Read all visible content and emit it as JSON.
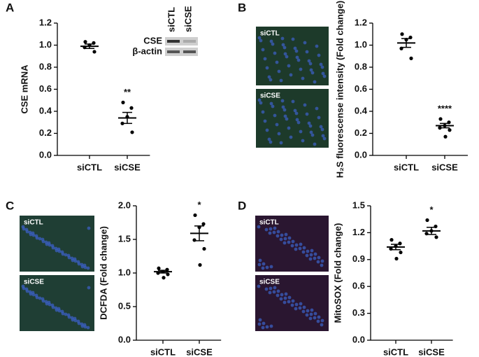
{
  "chart_data": [
    {
      "type": "strip",
      "panel_label": "A",
      "ylabel": "CSE mRNA",
      "categories": [
        "siCTL",
        "siCSE"
      ],
      "values": [
        [
          1.03,
          1.02,
          1.0,
          0.98,
          0.94
        ],
        [
          0.48,
          0.43,
          0.35,
          0.29,
          0.21
        ]
      ],
      "means": [
        0.99,
        0.34
      ],
      "sems": [
        0.02,
        0.05
      ],
      "annotation": "**",
      "color": "#000000",
      "ylim": [
        0,
        1.2
      ],
      "yticks": [
        {
          "value": 0,
          "label": "0.0"
        },
        0.2,
        0.4,
        0.6,
        0.8,
        {
          "value": 1,
          "label": "1.0"
        },
        1.2
      ],
      "blot": {
        "lanes": [
          "siCTL",
          "siCSE"
        ],
        "rows": [
          "CSE",
          "β-actin"
        ]
      }
    },
    {
      "type": "strip",
      "panel_label": "B",
      "ylabel": "H₂S fluorescense intensity (Fold change)",
      "categories": [
        "siCTL",
        "siCSE"
      ],
      "values": [
        [
          1.1,
          1.07,
          1.05,
          0.97,
          0.88
        ],
        [
          0.33,
          0.3,
          0.27,
          0.25,
          0.23,
          0.17
        ]
      ],
      "means": [
        1.02,
        0.27
      ],
      "sems": [
        0.04,
        0.02
      ],
      "annotation": "****",
      "color": "#000000",
      "ylim": [
        0,
        1.2
      ],
      "yticks": [
        {
          "value": 0,
          "label": "0.0"
        },
        0.2,
        0.4,
        0.6,
        0.8,
        {
          "value": 1,
          "label": "1.0"
        },
        1.2
      ],
      "images": [
        "siCTL",
        "siCSE"
      ],
      "image_color": "#1d3a2a"
    },
    {
      "type": "strip",
      "panel_label": "C",
      "ylabel": "DCFDA (Fold change)",
      "categories": [
        "siCTL",
        "siCSE"
      ],
      "values": [
        [
          1.07,
          1.05,
          1.02,
          1.0,
          0.98,
          0.93
        ],
        [
          1.86,
          1.73,
          1.68,
          1.49,
          1.36,
          1.12
        ]
      ],
      "means": [
        1.02,
        1.59
      ],
      "sems": [
        0.02,
        0.11
      ],
      "annotation": "*",
      "color": "#000000",
      "ylim": [
        0,
        2
      ],
      "yticks": [
        {
          "value": 0,
          "label": "0.0"
        },
        0.5,
        {
          "value": 1,
          "label": "1.0"
        },
        1.5,
        {
          "value": 2,
          "label": "2.0"
        }
      ],
      "images": [
        "siCTL",
        "siCSE"
      ],
      "image_color": "#1f3e34"
    },
    {
      "type": "strip",
      "panel_label": "D",
      "ylabel": "MitoSOX (Fold change)",
      "categories": [
        "siCTL",
        "siCSE"
      ],
      "values": [
        [
          1.12,
          1.08,
          1.05,
          1.02,
          0.98,
          0.91
        ],
        [
          1.34,
          1.27,
          1.22,
          1.19,
          1.15
        ]
      ],
      "means": [
        1.04,
        1.22
      ],
      "sems": [
        0.03,
        0.04
      ],
      "annotation": "*",
      "color": "#000000",
      "ylim": [
        0,
        1.5
      ],
      "yticks": [
        {
          "value": 0,
          "label": "0.0"
        },
        0.3,
        0.6,
        0.9,
        1.2,
        1.5
      ],
      "images": [
        "siCTL",
        "siCSE"
      ],
      "image_color": "#2a1630"
    }
  ]
}
